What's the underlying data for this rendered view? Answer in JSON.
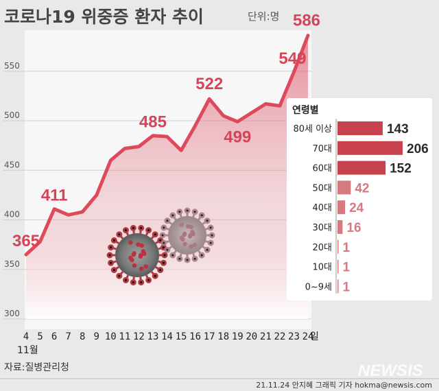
{
  "header": {
    "title": "코로나19 위중증 환자 추이",
    "unit": "단위:명"
  },
  "source": "자료:질병관리청",
  "credit": "21.11.24 안지혜 그래픽 기자 hokma@newsis.com",
  "watermark": "NEWSIS",
  "colors": {
    "line": "#dc4a5c",
    "bar_high": "#c8424d",
    "bar_low": "#d47a80",
    "label": "#d44557"
  },
  "chart_data": [
    {
      "type": "line",
      "title": "코로나19 위중증 환자 추이",
      "unit": "단위:명",
      "x_unit_start": "11월",
      "x_unit_end": "일",
      "x": [
        4,
        5,
        6,
        7,
        8,
        9,
        10,
        11,
        12,
        13,
        14,
        15,
        16,
        17,
        18,
        19,
        20,
        21,
        22,
        23,
        24
      ],
      "x_labels": [
        "4",
        "5",
        "6",
        "7",
        "8",
        "9",
        "10",
        "11",
        "12",
        "13",
        "14",
        "15",
        "16",
        "17",
        "18",
        "19",
        "20",
        "21",
        "22",
        "23",
        "24"
      ],
      "values": [
        365,
        378,
        411,
        405,
        408,
        425,
        460,
        472,
        474,
        485,
        484,
        470,
        495,
        522,
        505,
        499,
        508,
        517,
        515,
        549,
        586
      ],
      "yticks": [
        300,
        350,
        400,
        450,
        500,
        550
      ],
      "ylim": [
        300,
        586
      ],
      "labeled_points": [
        {
          "index": 0,
          "text": "365"
        },
        {
          "index": 2,
          "text": "411"
        },
        {
          "index": 9,
          "text": "485"
        },
        {
          "index": 13,
          "text": "522"
        },
        {
          "index": 15,
          "text": "499"
        },
        {
          "index": 19,
          "text": "549"
        },
        {
          "index": 20,
          "text": "586"
        }
      ]
    },
    {
      "type": "bar",
      "title": "연령별",
      "categories": [
        "80세 이상",
        "70대",
        "60대",
        "50대",
        "40대",
        "30대",
        "20대",
        "10대",
        "0~9세"
      ],
      "values": [
        143,
        206,
        152,
        42,
        24,
        16,
        1,
        1,
        1
      ],
      "value_labels": [
        "143",
        "206",
        "152",
        "42",
        "24",
        "16",
        "1",
        "1",
        "1"
      ]
    }
  ]
}
